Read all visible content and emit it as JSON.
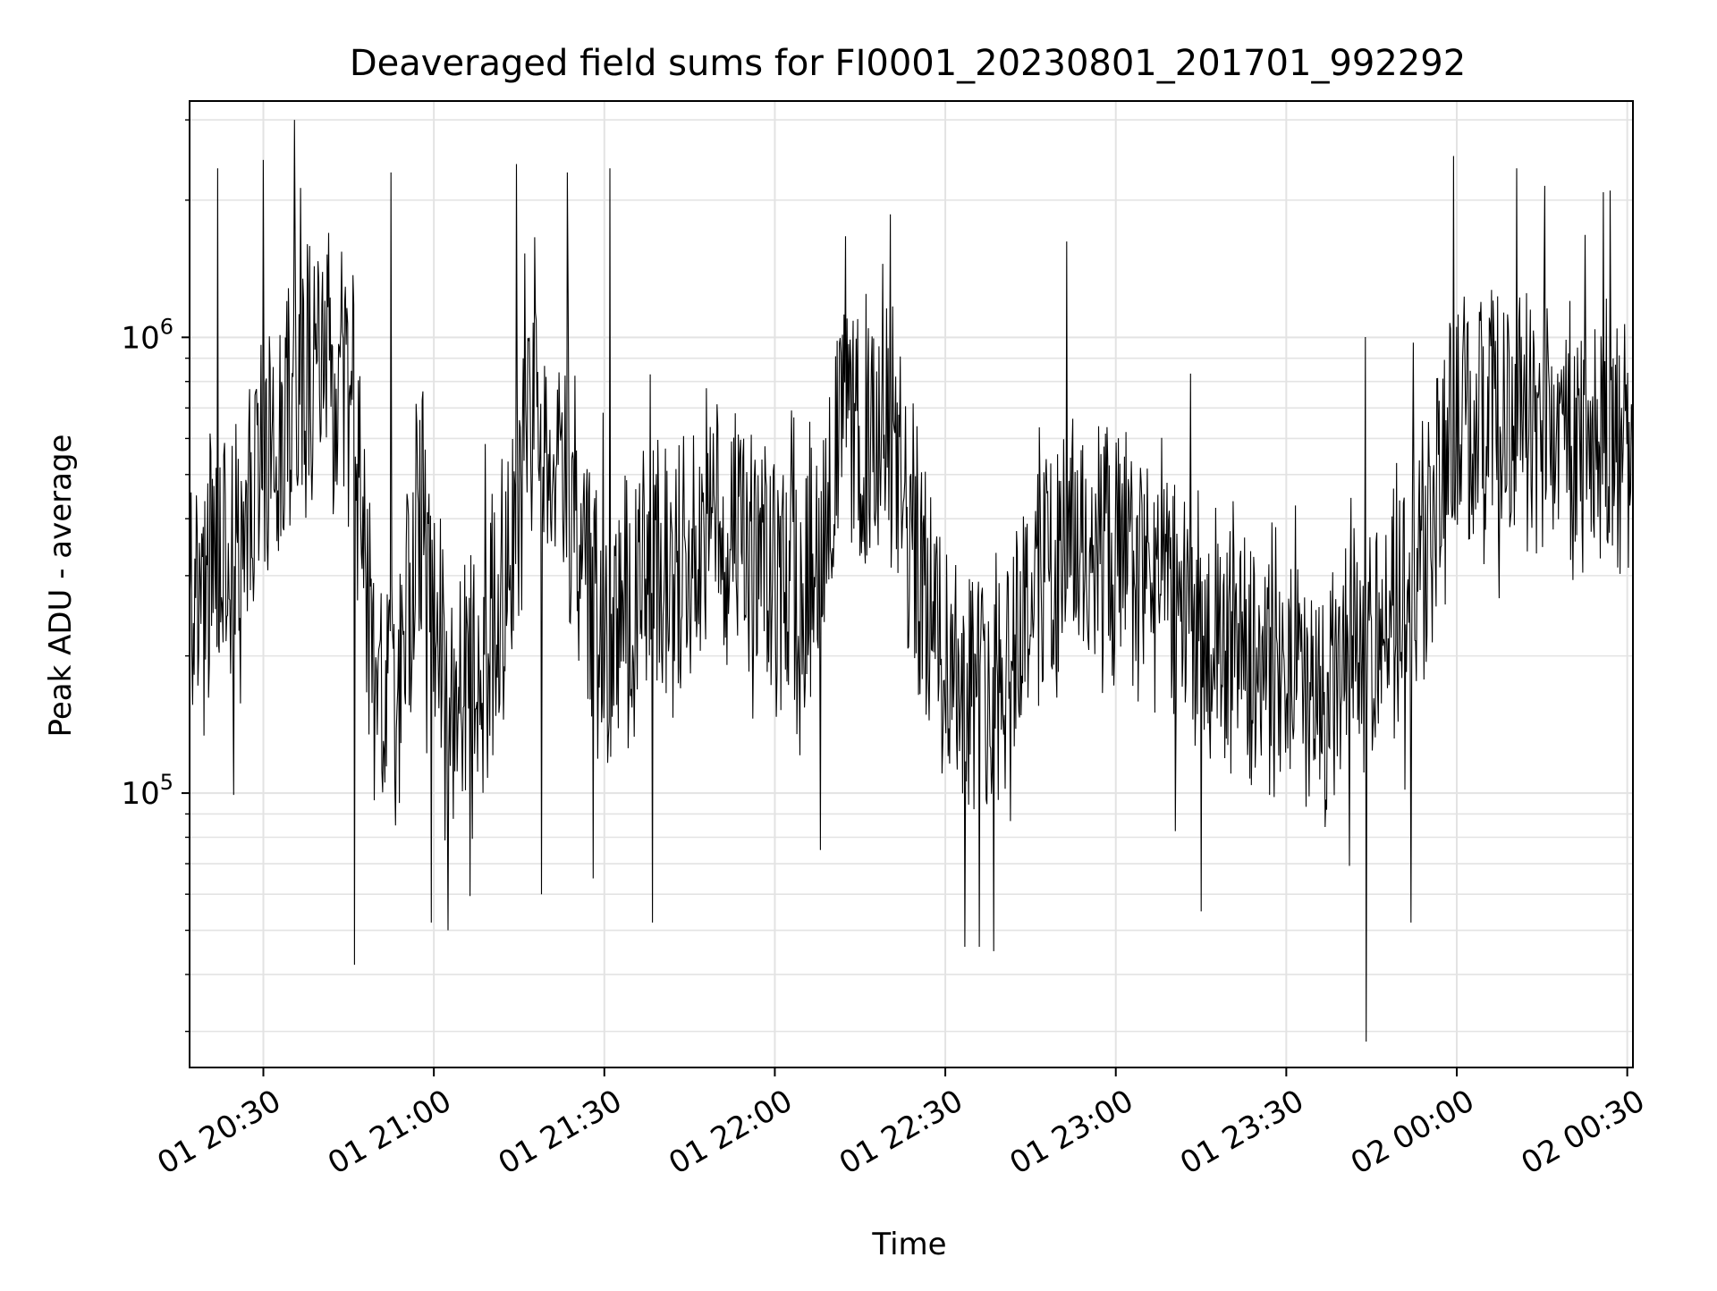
{
  "chart_data": {
    "type": "line",
    "title": "Deaveraged field sums for FI0001_20230801_201701_992292",
    "xlabel": "Time",
    "ylabel": "Peak ADU - average",
    "yscale": "log",
    "xlim": [
      "2023-08-01 20:17:01",
      "2023-08-02 00:31:00"
    ],
    "ylim": [
      25000,
      3300000
    ],
    "grid": true,
    "legend": "none",
    "x_tick_labels": [
      "01 20:30",
      "01 21:00",
      "01 21:30",
      "01 22:00",
      "01 22:30",
      "01 23:00",
      "01 23:30",
      "02 00:00",
      "02 00:30"
    ],
    "y_tick_labels": [
      {
        "base": "10",
        "exp": "5",
        "value": 100000
      },
      {
        "base": "10",
        "exp": "6",
        "value": 1000000
      }
    ],
    "line_color": "#000000",
    "series": [
      {
        "x_start": "2023-08-01 20:17:01",
        "x_end": "2023-08-02 00:31:00",
        "profile": [
          [
            "2023-08-01 20:17:01",
            260000
          ],
          [
            "2023-08-01 20:25:00",
            330000
          ],
          [
            "2023-08-01 20:30:00",
            520000
          ],
          [
            "2023-08-01 20:35:00",
            800000
          ],
          [
            "2023-08-01 20:40:00",
            880000
          ],
          [
            "2023-08-01 20:46:00",
            700000
          ],
          [
            "2023-08-01 20:49:00",
            200000
          ],
          [
            "2023-08-01 20:53:00",
            140000
          ],
          [
            "2023-08-01 20:58:00",
            450000
          ],
          [
            "2023-08-01 21:02:00",
            150000
          ],
          [
            "2023-08-01 21:08:00",
            180000
          ],
          [
            "2023-08-01 21:14:00",
            370000
          ],
          [
            "2023-08-01 21:18:00",
            700000
          ],
          [
            "2023-08-01 21:24:00",
            420000
          ],
          [
            "2023-08-01 21:30:00",
            200000
          ],
          [
            "2023-08-01 21:36:00",
            280000
          ],
          [
            "2023-08-01 21:42:00",
            330000
          ],
          [
            "2023-08-01 21:48:00",
            380000
          ],
          [
            "2023-08-01 21:54:00",
            350000
          ],
          [
            "2023-08-01 22:00:00",
            280000
          ],
          [
            "2023-08-01 22:06:00",
            320000
          ],
          [
            "2023-08-01 22:12:00",
            620000
          ],
          [
            "2023-08-01 22:20:00",
            560000
          ],
          [
            "2023-08-01 22:24:00",
            360000
          ],
          [
            "2023-08-01 22:30:00",
            200000
          ],
          [
            "2023-08-01 22:36:00",
            170000
          ],
          [
            "2023-08-01 22:42:00",
            220000
          ],
          [
            "2023-08-01 22:48:00",
            330000
          ],
          [
            "2023-08-01 22:54:00",
            350000
          ],
          [
            "2023-08-01 23:00:00",
            320000
          ],
          [
            "2023-08-01 23:10:00",
            280000
          ],
          [
            "2023-08-01 23:16:00",
            210000
          ],
          [
            "2023-08-01 23:22:00",
            220000
          ],
          [
            "2023-08-01 23:30:00",
            180000
          ],
          [
            "2023-08-01 23:36:00",
            150000
          ],
          [
            "2023-08-01 23:42:00",
            200000
          ],
          [
            "2023-08-01 23:50:00",
            270000
          ],
          [
            "2023-08-01 23:55:00",
            380000
          ],
          [
            "2023-08-02 00:00:00",
            620000
          ],
          [
            "2023-08-02 00:10:00",
            650000
          ],
          [
            "2023-08-02 00:20:00",
            600000
          ],
          [
            "2023-08-02 00:31:00",
            550000
          ]
        ],
        "spikes": [
          [
            "2023-08-01 20:22:00",
            2350000
          ],
          [
            "2023-08-01 20:30:00",
            2450000
          ],
          [
            "2023-08-01 20:35:30",
            3000000
          ],
          [
            "2023-08-01 20:46:00",
            42000
          ],
          [
            "2023-08-01 20:52:30",
            2300000
          ],
          [
            "2023-08-01 20:59:30",
            52000
          ],
          [
            "2023-08-01 21:02:30",
            50000
          ],
          [
            "2023-08-01 21:14:30",
            2400000
          ],
          [
            "2023-08-01 21:19:00",
            60000
          ],
          [
            "2023-08-01 21:23:30",
            2300000
          ],
          [
            "2023-08-01 21:28:00",
            65000
          ],
          [
            "2023-08-01 21:31:00",
            2350000
          ],
          [
            "2023-08-01 21:38:30",
            52000
          ],
          [
            "2023-08-01 22:08:00",
            75000
          ],
          [
            "2023-08-01 22:19:00",
            1450000
          ],
          [
            "2023-08-01 22:33:30",
            46000
          ],
          [
            "2023-08-01 22:36:00",
            46000
          ],
          [
            "2023-08-01 22:38:30",
            45000
          ],
          [
            "2023-08-01 23:15:00",
            55000
          ],
          [
            "2023-08-01 23:44:00",
            28500
          ],
          [
            "2023-08-01 23:52:00",
            52000
          ],
          [
            "2023-08-01 23:59:30",
            2500000
          ],
          [
            "2023-08-02 00:10:30",
            2350000
          ],
          [
            "2023-08-02 00:15:30",
            2150000
          ],
          [
            "2023-08-02 00:27:00",
            2100000
          ]
        ]
      }
    ]
  }
}
